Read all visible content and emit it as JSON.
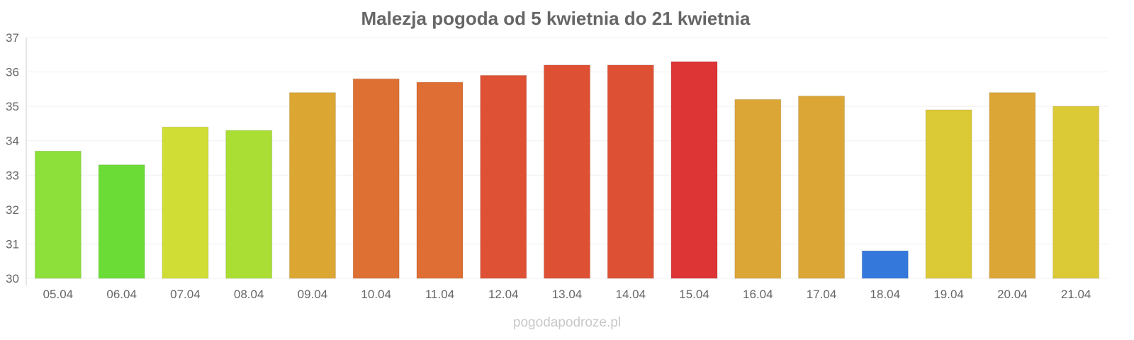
{
  "chart_data": {
    "type": "bar",
    "title": "Malezja pogoda od 5 kwietnia do 21 kwietnia",
    "xlabel": "",
    "ylabel": "",
    "ylim": [
      30,
      37
    ],
    "yticks": [
      "30",
      "31",
      "32",
      "33",
      "34",
      "35",
      "36",
      "37"
    ],
    "grid": true,
    "categories": [
      "05.04",
      "06.04",
      "07.04",
      "08.04",
      "09.04",
      "10.04",
      "11.04",
      "12.04",
      "13.04",
      "14.04",
      "15.04",
      "16.04",
      "17.04",
      "18.04",
      "19.04",
      "20.04",
      "21.04"
    ],
    "values": [
      33.7,
      33.3,
      34.4,
      34.3,
      35.4,
      35.8,
      35.7,
      35.9,
      36.2,
      36.2,
      36.3,
      35.2,
      35.3,
      30.8,
      34.9,
      35.4,
      35.0
    ],
    "colors": [
      "#8ddf3a",
      "#6bdc35",
      "#d0dd35",
      "#aade35",
      "#dca632",
      "#de7033",
      "#de6e33",
      "#de5134",
      "#de5034",
      "#de5034",
      "#dd3535",
      "#dca636",
      "#dca636",
      "#3478dc",
      "#dbc935",
      "#dca636",
      "#dbc935"
    ]
  },
  "credit": "pogodapodroze.pl"
}
